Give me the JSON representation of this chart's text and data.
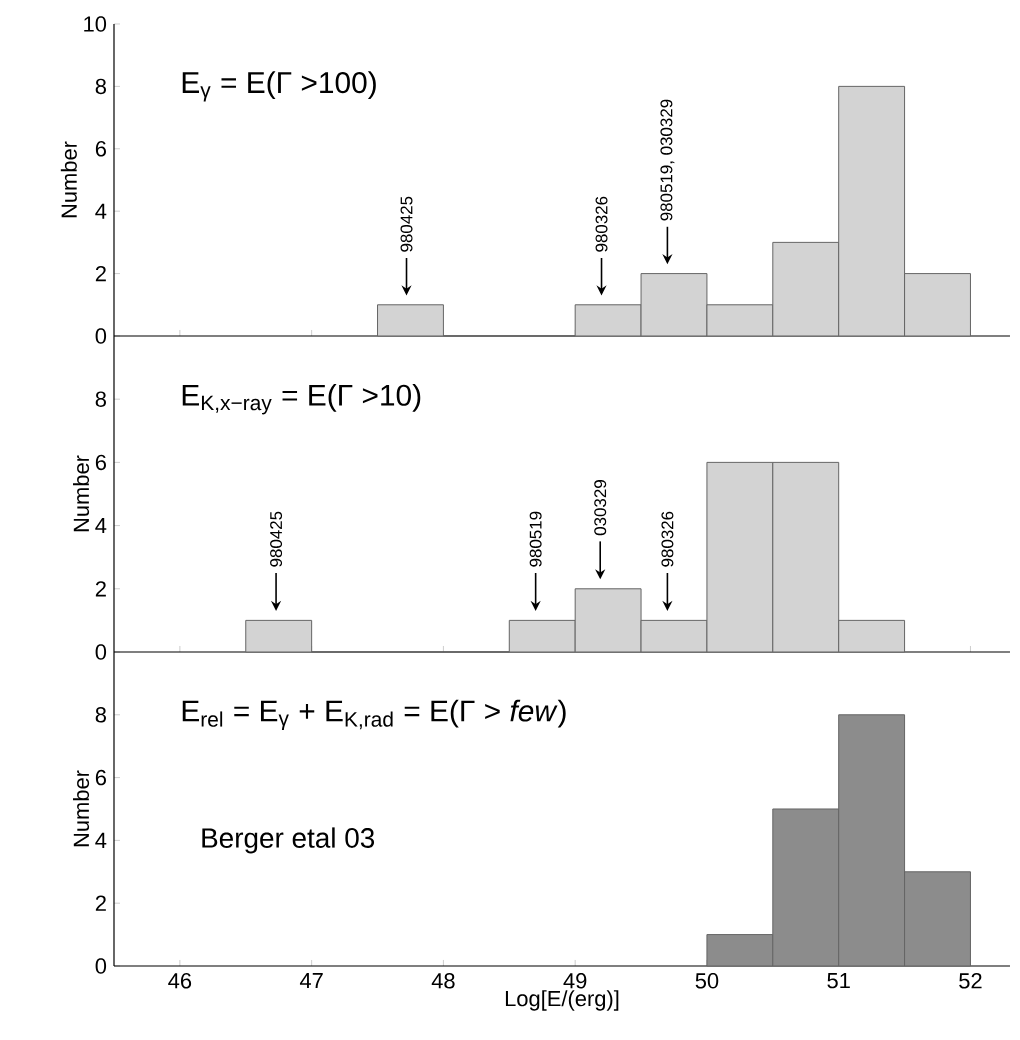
{
  "chart_data": [
    {
      "type": "histogram",
      "title": "E$_{γ}$ = E(Γ >100)",
      "ylabel": "Number",
      "color": "#d3d3d3",
      "bins": [
        47.5,
        48,
        48.5,
        49,
        49.5,
        50,
        50.5,
        51,
        51.5,
        52
      ],
      "values": [
        1,
        0,
        0,
        1,
        2,
        1,
        3,
        8,
        2
      ],
      "xlim": [
        45.5,
        52.3
      ],
      "xticks": [
        46,
        47,
        48,
        49,
        50,
        51,
        52
      ],
      "ylim": [
        0,
        10
      ],
      "yticks": [
        0,
        2,
        4,
        6,
        8,
        10
      ],
      "tick_labels": "y",
      "annotations": [
        {
          "text": "980425",
          "x": 47.72,
          "y": 1
        },
        {
          "text": "980326",
          "x": 49.2,
          "y": 1
        },
        {
          "text": "980519, 030329",
          "x": 49.7,
          "y": 2
        }
      ]
    },
    {
      "type": "histogram",
      "title": "E$_{K,x−ray}$ = E(Γ >10)",
      "ylabel": "Number",
      "color": "#d3d3d3",
      "bins": [
        46.5,
        47,
        47.5,
        48,
        48.5,
        49,
        49.5,
        50,
        50.5,
        51,
        51.5
      ],
      "values": [
        1,
        0,
        0,
        0,
        1,
        2,
        1,
        6,
        6,
        1
      ],
      "xlim": [
        45.5,
        52.3
      ],
      "xticks": [
        46,
        47,
        48,
        49,
        50,
        51,
        52
      ],
      "ylim": [
        0,
        10
      ],
      "yticks": [
        0,
        2,
        4,
        6,
        8
      ],
      "tick_labels": "y",
      "annotations": [
        {
          "text": "980425",
          "x": 46.73,
          "y": 1
        },
        {
          "text": "980519",
          "x": 48.7,
          "y": 1
        },
        {
          "text": "030329",
          "x": 49.19,
          "y": 2
        },
        {
          "text": "980326",
          "x": 49.7,
          "y": 1
        }
      ]
    },
    {
      "type": "histogram",
      "title": "E$_{rel}$ = E$_{γ}$ + E$_{K,rad}$ = E(Γ > *few*)",
      "ylabel": "Number",
      "xlabel": "Log[E/(erg)]",
      "color": "#8c8c8c",
      "bins": [
        50,
        50.5,
        51,
        51.5,
        52
      ],
      "values": [
        1,
        5,
        8,
        3
      ],
      "xlim": [
        45.5,
        52.3
      ],
      "xticks": [
        46,
        47,
        48,
        49,
        50,
        51,
        52
      ],
      "ylim": [
        0,
        10
      ],
      "yticks": [
        0,
        2,
        4,
        6,
        8
      ],
      "annotations": [
        "Berger etal 03"
      ]
    }
  ]
}
